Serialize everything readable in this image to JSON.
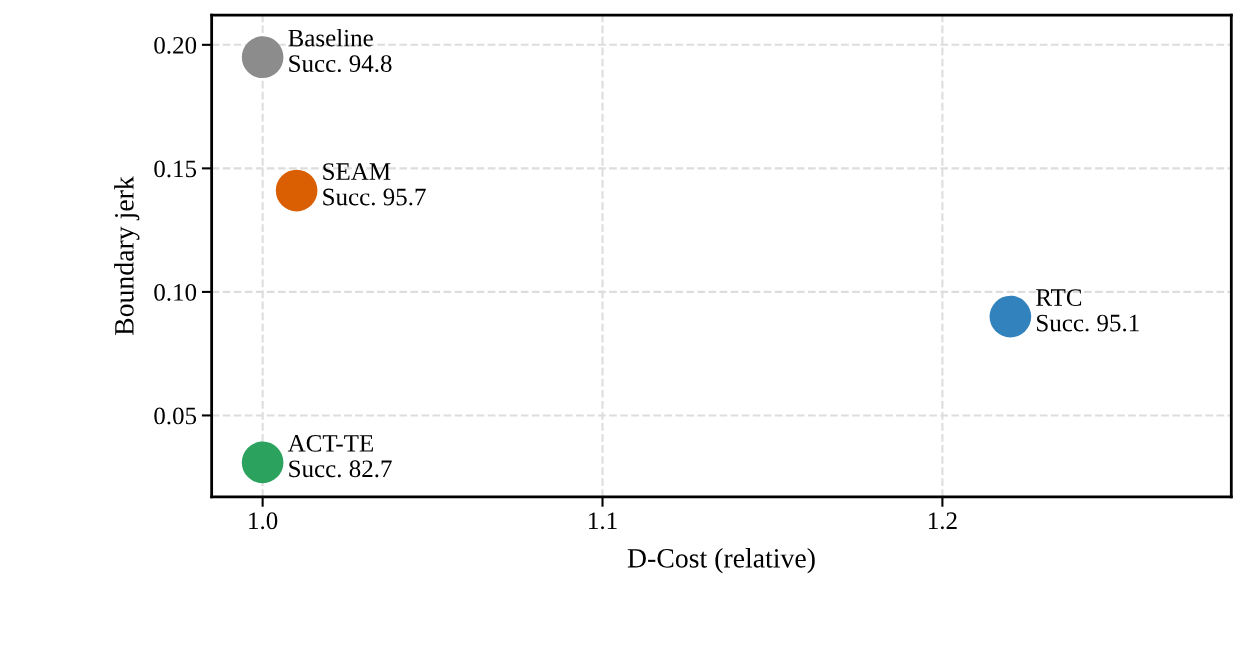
{
  "chart_data": {
    "type": "scatter",
    "xlabel": "D-Cost (relative)",
    "ylabel": "Boundary jerk",
    "series": [
      {
        "name": "Baseline",
        "color": "#8c8c8c",
        "x": [
          1.0
        ],
        "values": [
          0.195
        ]
      },
      {
        "name": "SEAM",
        "color": "#d95f02",
        "x": [
          1.01
        ],
        "values": [
          0.141
        ]
      },
      {
        "name": "RTC",
        "color": "#3182bd",
        "x": [
          1.22
        ],
        "values": [
          0.09
        ]
      },
      {
        "name": "ACT-TE",
        "color": "#2ca25f",
        "x": [
          1.0
        ],
        "values": [
          0.031
        ]
      }
    ],
    "annotations": [
      {
        "text": "Succ. 94.8",
        "x": 1.0,
        "y": 0.195
      },
      {
        "text": "Succ. 95.7",
        "x": 1.01,
        "y": 0.141
      },
      {
        "text": "Succ. 95.1",
        "x": 1.22,
        "y": 0.09
      },
      {
        "text": "Succ. 82.7",
        "x": 1.0,
        "y": 0.031
      }
    ],
    "xlim": [
      0.985,
      1.285
    ],
    "ylim": [
      0.017,
      0.212
    ],
    "xticks": [
      {
        "value": 1.0,
        "label": "1.0"
      },
      1.1,
      1.2
    ],
    "yticks": [
      0.05,
      {
        "value": 0.1,
        "label": "0.10"
      },
      0.15,
      {
        "value": 0.2,
        "label": "0.20"
      }
    ],
    "grid": true,
    "marker": "circle",
    "legend": false
  }
}
